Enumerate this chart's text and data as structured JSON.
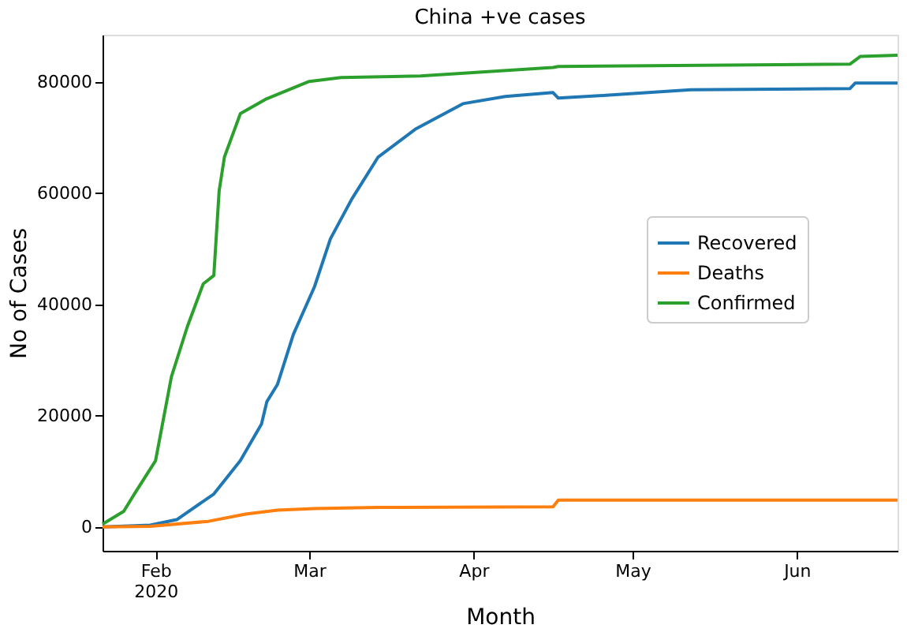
{
  "chart_data": {
    "type": "line",
    "title": "China +ve  cases",
    "xlabel": "Month",
    "ylabel": "No of Cases",
    "xlim": [
      "2020-01-22",
      "2020-06-20"
    ],
    "xticks": [
      {
        "value": "2020-02-01",
        "label": "Feb\n2020"
      },
      {
        "value": "2020-03-01",
        "label": "Mar"
      },
      {
        "value": "2020-04-01",
        "label": "Apr"
      },
      {
        "value": "2020-05-01",
        "label": "May"
      },
      {
        "value": "2020-06-01",
        "label": "Jun"
      }
    ],
    "ylim": [
      -4300,
      88500
    ],
    "yticks": [
      0,
      20000,
      40000,
      60000,
      80000
    ],
    "grid": false,
    "legend": "right",
    "line_style": "solid",
    "marker": "none",
    "series": [
      {
        "name": "Recovered",
        "color": "#1f77b4",
        "x": [
          "2020-01-22",
          "2020-01-31",
          "2020-02-05",
          "2020-02-12",
          "2020-02-17",
          "2020-02-21",
          "2020-02-22",
          "2020-02-24",
          "2020-02-27",
          "2020-03-02",
          "2020-03-05",
          "2020-03-09",
          "2020-03-14",
          "2020-03-21",
          "2020-03-30",
          "2020-04-07",
          "2020-04-16",
          "2020-04-17",
          "2020-04-26",
          "2020-05-12",
          "2020-06-11",
          "2020-06-12",
          "2020-06-20"
        ],
        "values": [
          0,
          300,
          1300,
          5900,
          11900,
          18500,
          22500,
          25600,
          34600,
          43200,
          51800,
          58900,
          66500,
          71500,
          76100,
          77400,
          78100,
          77100,
          77600,
          78600,
          78800,
          79800,
          79800
        ]
      },
      {
        "name": "Deaths",
        "color": "#ff7f0e",
        "x": [
          "2020-01-22",
          "2020-01-31",
          "2020-02-11",
          "2020-02-18",
          "2020-02-24",
          "2020-03-02",
          "2020-03-14",
          "2020-04-16",
          "2020-04-17",
          "2020-06-20"
        ],
        "values": [
          0,
          100,
          1000,
          2300,
          3000,
          3300,
          3500,
          3600,
          4800,
          4800
        ]
      },
      {
        "name": "Confirmed",
        "color": "#2ca02c",
        "x": [
          "2020-01-22",
          "2020-01-26",
          "2020-01-28",
          "2020-02-01",
          "2020-02-04",
          "2020-02-07",
          "2020-02-10",
          "2020-02-12",
          "2020-02-13",
          "2020-02-14",
          "2020-02-17",
          "2020-02-22",
          "2020-03-01",
          "2020-03-07",
          "2020-03-22",
          "2020-04-16",
          "2020-04-17",
          "2020-06-11",
          "2020-06-13",
          "2020-06-20"
        ],
        "values": [
          500,
          2800,
          5900,
          11900,
          27000,
          36000,
          43700,
          45200,
          60400,
          66500,
          74300,
          77000,
          80100,
          80800,
          81100,
          82600,
          82800,
          83200,
          84600,
          84800
        ]
      }
    ]
  }
}
